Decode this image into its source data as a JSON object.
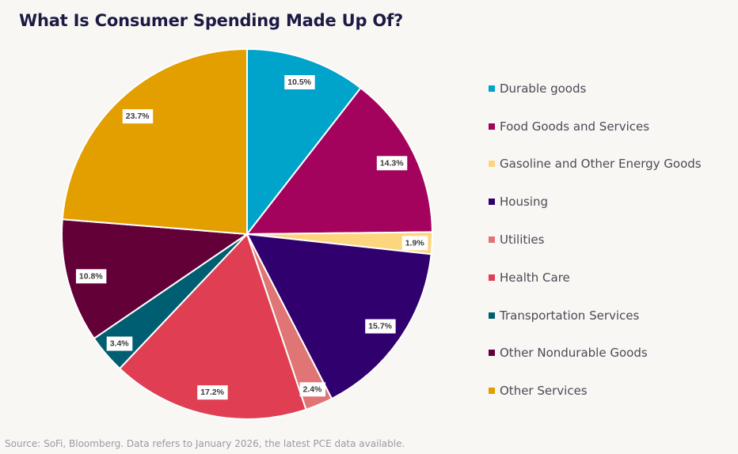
{
  "title": "What Is Consumer Spending Made Up Of?",
  "source": "Source: SoFi, Bloomberg. Data refers to January 2026, the latest PCE data available.",
  "chart_data": {
    "type": "pie",
    "title": "What Is Consumer Spending Made Up Of?",
    "start_angle": "12 o'clock",
    "direction": "clockwise",
    "legend_position": "right",
    "unit": "%",
    "categories": [
      "Durable goods",
      "Food Goods and Services",
      "Gasoline and Other Energy Goods",
      "Housing",
      "Utilities",
      "Health Care",
      "Transportation Services",
      "Other Nondurable Goods",
      "Other Services"
    ],
    "values": [
      10.5,
      14.3,
      1.9,
      15.7,
      2.4,
      17.2,
      3.4,
      10.8,
      23.7
    ],
    "labels": [
      "10.5%",
      "14.3%",
      "1.9%",
      "15.7%",
      "2.4%",
      "17.2%",
      "3.4%",
      "10.8%",
      "23.7%"
    ],
    "colors": [
      "#00a3c9",
      "#a3035c",
      "#fdd57e",
      "#31006f",
      "#df7575",
      "#e03e52",
      "#005e72",
      "#640038",
      "#e39f00"
    ]
  }
}
